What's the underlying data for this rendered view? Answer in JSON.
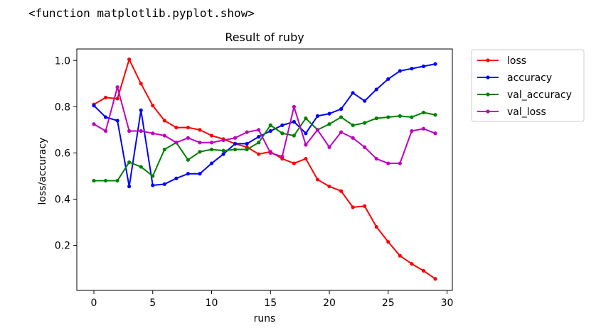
{
  "output": {
    "repr_text": "<function matplotlib.pyplot.show>"
  },
  "chart_data": {
    "type": "line",
    "title": "Result of ruby",
    "xlabel": "runs",
    "ylabel": "loss/accuracy",
    "xlim": [
      -1.45,
      30.45
    ],
    "ylim": [
      0.005,
      1.05
    ],
    "xticks": [
      0,
      5,
      10,
      15,
      20,
      25,
      30
    ],
    "yticks": [
      0.2,
      0.4,
      0.6,
      0.8,
      1.0
    ],
    "xtick_labels": [
      "0",
      "5",
      "10",
      "15",
      "20",
      "25",
      "30"
    ],
    "ytick_labels": [
      "0.2",
      "0.4",
      "0.6",
      "0.8",
      "1.0"
    ],
    "grid": false,
    "legend_position": "outside-upper-right",
    "x": [
      0,
      1,
      2,
      3,
      4,
      5,
      6,
      7,
      8,
      9,
      10,
      11,
      12,
      13,
      14,
      15,
      16,
      17,
      18,
      19,
      20,
      21,
      22,
      23,
      24,
      25,
      26,
      27,
      28,
      29
    ],
    "series": [
      {
        "name": "loss",
        "color": "#ff0000",
        "values": [
          0.81,
          0.84,
          0.835,
          1.005,
          0.9,
          0.805,
          0.74,
          0.71,
          0.71,
          0.7,
          0.675,
          0.66,
          0.64,
          0.625,
          0.595,
          0.605,
          0.575,
          0.555,
          0.575,
          0.485,
          0.455,
          0.435,
          0.365,
          0.37,
          0.28,
          0.215,
          0.155,
          0.12,
          0.09,
          0.055
        ]
      },
      {
        "name": "accuracy",
        "color": "#0000ff",
        "values": [
          0.805,
          0.755,
          0.74,
          0.455,
          0.785,
          0.46,
          0.465,
          0.49,
          0.51,
          0.51,
          0.555,
          0.595,
          0.64,
          0.64,
          0.67,
          0.695,
          0.72,
          0.735,
          0.685,
          0.76,
          0.77,
          0.79,
          0.86,
          0.825,
          0.875,
          0.92,
          0.955,
          0.965,
          0.975,
          0.985
        ]
      },
      {
        "name": "val_accuracy",
        "color": "#008000",
        "values": [
          0.48,
          0.48,
          0.48,
          0.56,
          0.54,
          0.5,
          0.615,
          0.645,
          0.57,
          0.605,
          0.615,
          0.61,
          0.615,
          0.615,
          0.645,
          0.72,
          0.685,
          0.675,
          0.75,
          0.7,
          0.725,
          0.755,
          0.72,
          0.73,
          0.75,
          0.755,
          0.76,
          0.755,
          0.775,
          0.765
        ]
      },
      {
        "name": "val_loss",
        "color": "#bf00bf",
        "values": [
          0.725,
          0.695,
          0.885,
          0.695,
          0.695,
          0.685,
          0.675,
          0.645,
          0.665,
          0.645,
          0.645,
          0.655,
          0.665,
          0.69,
          0.7,
          0.6,
          0.585,
          0.8,
          0.635,
          0.7,
          0.625,
          0.69,
          0.665,
          0.625,
          0.575,
          0.555,
          0.555,
          0.695,
          0.705,
          0.685
        ]
      }
    ]
  }
}
